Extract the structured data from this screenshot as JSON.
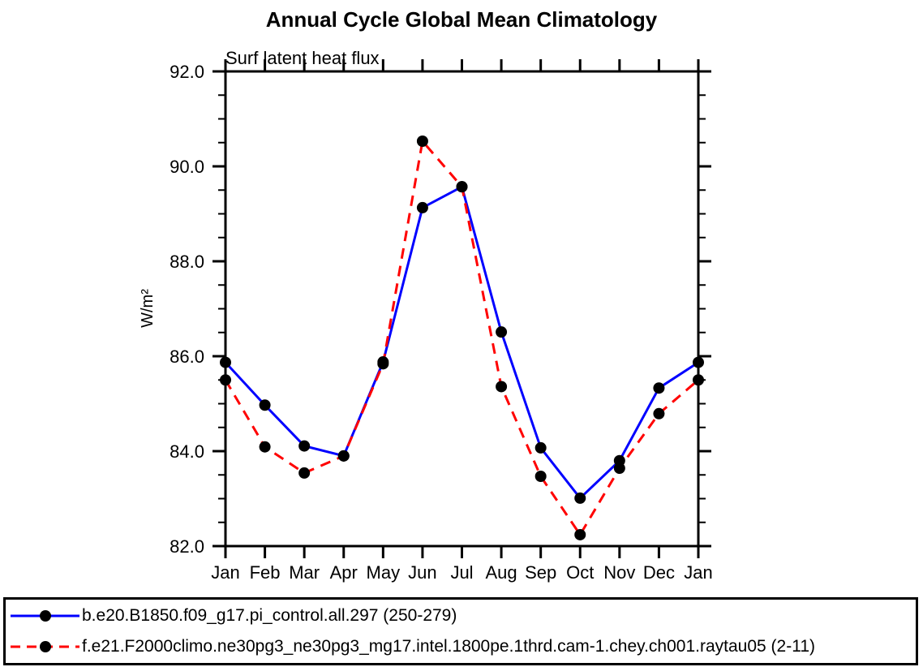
{
  "chart_data": {
    "type": "line",
    "title": "Annual Cycle Global Mean Climatology",
    "subtitle": "Surf latent heat flux",
    "ylabel": "W/m²",
    "categories": [
      "Jan",
      "Feb",
      "Mar",
      "Apr",
      "May",
      "Jun",
      "Jul",
      "Aug",
      "Sep",
      "Oct",
      "Nov",
      "Dec",
      "Jan"
    ],
    "ylim": [
      82.0,
      92.0
    ],
    "ytick_major": [
      82,
      84,
      86,
      88,
      90,
      92
    ],
    "ytick_labels": [
      "82.0",
      "84.0",
      "86.0",
      "88.0",
      "90.0",
      "92.0"
    ],
    "ytick_minor_interval": 0.5,
    "grid": false,
    "legend_position": "bottom",
    "marker": {
      "shape": "circle",
      "color": "#000000",
      "radius": 7
    },
    "axis_color": "#000000",
    "series": [
      {
        "name": "b.e20.B1850.f09_g17.pi_control.all.297 (250-279)",
        "color": "#0000ff",
        "line_style": "solid",
        "values": [
          85.87,
          84.97,
          84.11,
          83.9,
          85.88,
          89.13,
          89.57,
          86.51,
          84.07,
          83.01,
          83.8,
          85.33,
          85.87
        ]
      },
      {
        "name": "f.e21.F2000climo.ne30pg3_ne30pg3_mg17.intel.1800pe.1thrd.cam-1.chey.ch001.raytau05 (2-11)",
        "color": "#ff0000",
        "line_style": "dashed",
        "values": [
          85.5,
          84.09,
          83.54,
          83.9,
          85.84,
          90.53,
          89.57,
          85.36,
          83.47,
          82.24,
          83.64,
          84.79,
          85.5
        ]
      }
    ]
  }
}
